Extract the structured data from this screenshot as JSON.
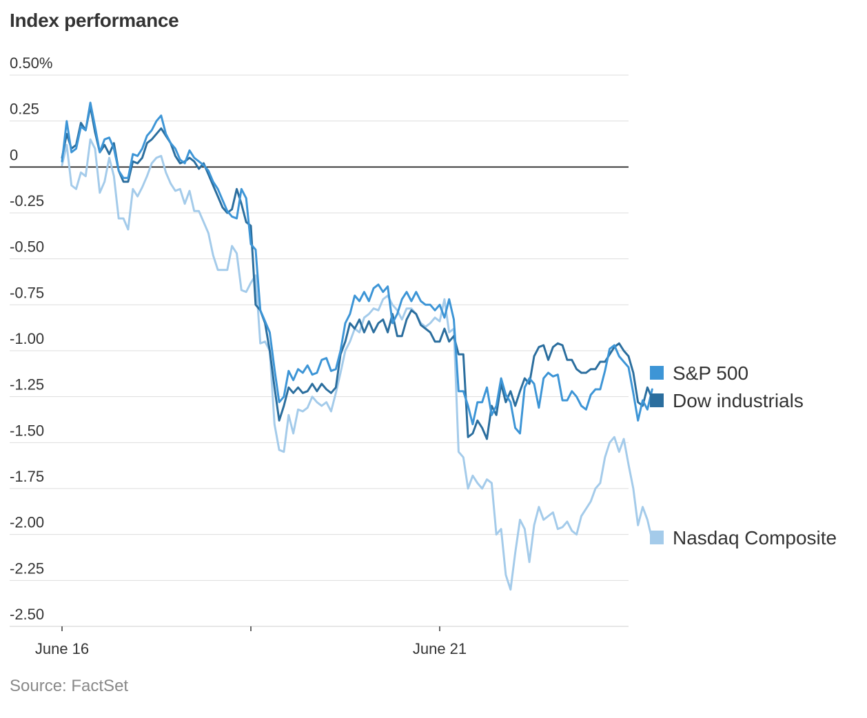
{
  "chart_data": {
    "type": "line",
    "title": "Index performance",
    "source": "Source: FactSet",
    "ylim": [
      -2.5,
      0.5
    ],
    "yticks": [
      0.5,
      0.25,
      0,
      -0.25,
      -0.5,
      -0.75,
      -1.0,
      -1.25,
      -1.5,
      -1.75,
      -2.0,
      -2.25,
      -2.5
    ],
    "ytick_labels": [
      "0.50%",
      "0.25",
      "0",
      "-0.25",
      "-0.50",
      "-0.75",
      "-1.00",
      "-1.25",
      "-1.50",
      "-1.75",
      "-2.00",
      "-2.25",
      "-2.50"
    ],
    "xlim": [
      0,
      120
    ],
    "xticks": [
      {
        "x": 0,
        "label": "June 16"
      },
      {
        "x": 40,
        "label": ""
      },
      {
        "x": 80,
        "label": "June 21"
      }
    ],
    "colors": {
      "sp500": "#3d95d6",
      "dow": "#2b6e9e",
      "nasdaq": "#a4cbea",
      "zero": "#000000",
      "grid": "#dddddd"
    },
    "series": [
      {
        "key": "sp500",
        "name": "S&P 500",
        "color": "#3d95d6",
        "values": [
          0.03,
          0.25,
          0.08,
          0.1,
          0.22,
          0.2,
          0.35,
          0.22,
          0.08,
          0.15,
          0.16,
          0.1,
          -0.02,
          -0.06,
          -0.06,
          0.07,
          0.06,
          0.1,
          0.17,
          0.2,
          0.25,
          0.28,
          0.18,
          0.13,
          0.1,
          0.04,
          0.02,
          0.09,
          0.05,
          0.03,
          0.01,
          -0.02,
          -0.08,
          -0.12,
          -0.18,
          -0.24,
          -0.27,
          -0.28,
          -0.12,
          -0.17,
          -0.42,
          -0.45,
          -0.78,
          -0.84,
          -0.9,
          -1.1,
          -1.28,
          -1.25,
          -1.11,
          -1.16,
          -1.1,
          -1.12,
          -1.08,
          -1.13,
          -1.12,
          -1.05,
          -1.04,
          -1.11,
          -1.1,
          -1.0,
          -0.85,
          -0.8,
          -0.7,
          -0.73,
          -0.68,
          -0.73,
          -0.66,
          -0.64,
          -0.68,
          -0.65,
          -0.85,
          -0.8,
          -0.72,
          -0.68,
          -0.73,
          -0.68,
          -0.73,
          -0.75,
          -0.75,
          -0.78,
          -0.75,
          -0.82,
          -0.72,
          -0.83,
          -1.22,
          -1.22,
          -1.3,
          -1.4,
          -1.28,
          -1.28,
          -1.2,
          -1.35,
          -1.3,
          -1.15,
          -1.24,
          -1.28,
          -1.42,
          -1.45,
          -1.2,
          -1.15,
          -1.18,
          -1.31,
          -1.15,
          -1.12,
          -1.14,
          -1.13,
          -1.27,
          -1.27,
          -1.22,
          -1.25,
          -1.3,
          -1.32,
          -1.24,
          -1.21,
          -1.21,
          -1.11,
          -0.99,
          -0.97,
          -1.03,
          -1.06,
          -1.09,
          -1.23,
          -1.38,
          -1.27,
          -1.32,
          -1.21
        ]
      },
      {
        "key": "dow",
        "name": "Dow industrials",
        "color": "#2b6e9e",
        "values": [
          0.05,
          0.18,
          0.1,
          0.12,
          0.24,
          0.2,
          0.33,
          0.19,
          0.08,
          0.12,
          0.07,
          0.13,
          -0.02,
          -0.08,
          -0.08,
          0.03,
          0.02,
          0.05,
          0.13,
          0.15,
          0.18,
          0.21,
          0.17,
          0.13,
          0.06,
          0.02,
          0.03,
          0.05,
          0.03,
          -0.01,
          0.02,
          -0.04,
          -0.1,
          -0.16,
          -0.22,
          -0.25,
          -0.23,
          -0.12,
          -0.2,
          -0.3,
          -0.32,
          -0.75,
          -0.78,
          -0.85,
          -1.0,
          -1.2,
          -1.38,
          -1.3,
          -1.2,
          -1.23,
          -1.2,
          -1.23,
          -1.22,
          -1.18,
          -1.22,
          -1.18,
          -1.21,
          -1.23,
          -1.2,
          -1.02,
          -0.95,
          -0.85,
          -0.88,
          -0.83,
          -0.9,
          -0.84,
          -0.9,
          -0.85,
          -0.83,
          -0.9,
          -0.8,
          -0.92,
          -0.92,
          -0.83,
          -0.78,
          -0.8,
          -0.86,
          -0.88,
          -0.9,
          -0.95,
          -0.95,
          -0.88,
          -0.95,
          -0.92,
          -1.02,
          -1.02,
          -1.47,
          -1.45,
          -1.38,
          -1.42,
          -1.48,
          -1.3,
          -1.35,
          -1.18,
          -1.28,
          -1.22,
          -1.3,
          -1.22,
          -1.15,
          -1.18,
          -1.03,
          -0.98,
          -0.97,
          -1.05,
          -0.98,
          -0.96,
          -0.97,
          -1.05,
          -1.05,
          -1.1,
          -1.12,
          -1.12,
          -1.1,
          -1.1,
          -1.06,
          -1.06,
          -1.02,
          -0.98,
          -0.96,
          -1.0,
          -1.03,
          -1.12,
          -1.28,
          -1.3,
          -1.2,
          -1.26,
          -1.25
        ]
      },
      {
        "key": "nasdaq",
        "name": "Nasdaq Composite",
        "color": "#a4cbea",
        "values": [
          0.01,
          0.12,
          -0.1,
          -0.12,
          -0.03,
          -0.05,
          0.15,
          0.1,
          -0.14,
          -0.08,
          0.05,
          -0.05,
          -0.28,
          -0.28,
          -0.34,
          -0.12,
          -0.16,
          -0.11,
          -0.05,
          0.02,
          0.05,
          0.06,
          -0.03,
          -0.09,
          -0.13,
          -0.12,
          -0.2,
          -0.13,
          -0.24,
          -0.24,
          -0.3,
          -0.36,
          -0.48,
          -0.56,
          -0.56,
          -0.56,
          -0.43,
          -0.47,
          -0.67,
          -0.68,
          -0.63,
          -0.59,
          -0.96,
          -0.95,
          -1.0,
          -1.4,
          -1.54,
          -1.55,
          -1.35,
          -1.45,
          -1.32,
          -1.33,
          -1.31,
          -1.25,
          -1.28,
          -1.3,
          -1.28,
          -1.33,
          -1.23,
          -1.12,
          -1.0,
          -0.95,
          -0.88,
          -0.9,
          -0.82,
          -0.8,
          -0.77,
          -0.78,
          -0.72,
          -0.7,
          -0.75,
          -0.78,
          -0.83,
          -0.77,
          -0.77,
          -0.8,
          -0.85,
          -0.87,
          -0.85,
          -0.82,
          -0.84,
          -0.72,
          -0.9,
          -0.88,
          -1.55,
          -1.58,
          -1.75,
          -1.68,
          -1.72,
          -1.75,
          -1.7,
          -1.72,
          -2.0,
          -1.97,
          -2.22,
          -2.3,
          -2.1,
          -1.92,
          -1.97,
          -2.15,
          -1.95,
          -1.85,
          -1.92,
          -1.9,
          -1.88,
          -1.97,
          -1.96,
          -1.93,
          -1.98,
          -2.0,
          -1.9,
          -1.86,
          -1.82,
          -1.75,
          -1.72,
          -1.58,
          -1.5,
          -1.47,
          -1.55,
          -1.48,
          -1.62,
          -1.75,
          -1.95,
          -1.85,
          -1.92,
          -2.03
        ]
      }
    ],
    "legend": {
      "placement": "right"
    }
  }
}
